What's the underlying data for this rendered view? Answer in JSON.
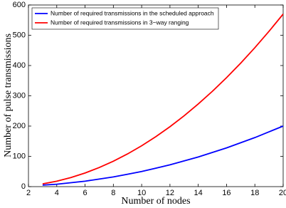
{
  "chart_data": {
    "type": "line",
    "x_label": "Number of nodes",
    "y_label": "Number of pulse transmissions",
    "x": [
      3,
      4,
      5,
      6,
      7,
      8,
      9,
      10,
      11,
      12,
      13,
      14,
      15,
      16,
      17,
      18,
      19,
      20
    ],
    "series": [
      {
        "name": "Number of required transmissions in the scheduled approach",
        "color": "#0000ff",
        "values": [
          5,
          8,
          13,
          18,
          25,
          32,
          41,
          50,
          61,
          72,
          85,
          98,
          113,
          128,
          145,
          162,
          181,
          200
        ]
      },
      {
        "name": "Number of required transmissions in 3−way ranging",
        "color": "#ff0000",
        "values": [
          9,
          18,
          30,
          45,
          63,
          84,
          108,
          135,
          165,
          198,
          234,
          273,
          315,
          360,
          408,
          459,
          513,
          570
        ]
      }
    ],
    "xlim": [
      2,
      20
    ],
    "xticks": [
      2,
      4,
      6,
      8,
      10,
      12,
      14,
      16,
      18,
      20
    ],
    "ylim": [
      0,
      600
    ],
    "yticks": [
      0,
      100,
      200,
      300,
      400,
      500,
      600
    ],
    "legend": "upper left"
  }
}
